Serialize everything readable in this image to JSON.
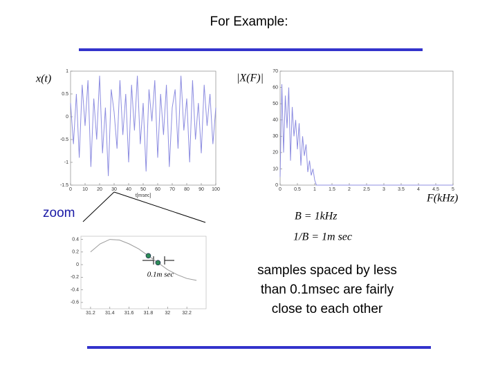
{
  "title": "For Example:",
  "zoom_label": "zoom",
  "bandwidth": "B = 1kHz",
  "inverse_bandwidth": "1/B = 1m sec",
  "note": [
    "samples spaced by less",
    "than 0.1msec are fairly",
    "close to each other"
  ],
  "chart_data": [
    {
      "type": "line",
      "y_label": "x(t)",
      "x_label": "t[msec]",
      "x": [
        0,
        2,
        4,
        6,
        8,
        10,
        12,
        14,
        16,
        18,
        20,
        22,
        24,
        26,
        28,
        30,
        32,
        34,
        36,
        38,
        40,
        42,
        44,
        46,
        48,
        50,
        52,
        54,
        56,
        58,
        60,
        62,
        64,
        66,
        68,
        70,
        72,
        74,
        76,
        78,
        80,
        82,
        84,
        86,
        88,
        90,
        92,
        94,
        96,
        98,
        100
      ],
      "series": [
        {
          "color": "#8c8ce0",
          "values": [
            0.3,
            -0.6,
            0.5,
            -0.9,
            0.7,
            -0.2,
            0.8,
            -1.1,
            0.4,
            -0.5,
            0.9,
            -0.8,
            0.2,
            -1.3,
            0.6,
            0.1,
            -0.7,
            0.8,
            -0.4,
            0.5,
            -1.0,
            0.7,
            -0.3,
            0.9,
            -0.6,
            0.3,
            -1.2,
            0.6,
            -0.1,
            0.8,
            -0.9,
            0.5,
            -0.4,
            0.7,
            -1.1,
            0.2,
            0.6,
            -0.7,
            0.9,
            -0.3,
            0.4,
            -1.0,
            0.8,
            -0.5,
            0.3,
            -0.8,
            0.7,
            -0.2,
            0.5,
            -0.6,
            0.2
          ]
        }
      ],
      "xlim": [
        0,
        100
      ],
      "xticks": [
        0,
        10,
        20,
        30,
        40,
        50,
        60,
        70,
        80,
        90,
        100
      ],
      "ylim": [
        -1.5,
        1
      ],
      "yticks": [
        -1.5,
        -1,
        -0.5,
        0,
        0.5,
        1
      ]
    },
    {
      "type": "line",
      "y_label": "|X(F)|",
      "x_label": "F(kHz)",
      "x": [
        0,
        0.05,
        0.1,
        0.15,
        0.2,
        0.25,
        0.3,
        0.35,
        0.4,
        0.45,
        0.5,
        0.55,
        0.6,
        0.65,
        0.7,
        0.75,
        0.8,
        0.85,
        0.9,
        0.95,
        1,
        1.05,
        1.1,
        1.15,
        1.2,
        5
      ],
      "series": [
        {
          "color": "#8c8ce0",
          "values": [
            5,
            62,
            20,
            55,
            35,
            60,
            15,
            48,
            30,
            40,
            22,
            38,
            12,
            30,
            18,
            25,
            8,
            15,
            6,
            10,
            3,
            0,
            0,
            0,
            0,
            0
          ]
        }
      ],
      "xlim": [
        0,
        5
      ],
      "xticks": [
        0,
        0.5,
        1,
        1.5,
        2,
        2.5,
        3,
        3.5,
        4,
        4.5,
        5
      ],
      "ylim": [
        0,
        70
      ],
      "yticks": [
        0,
        10,
        20,
        30,
        40,
        50,
        60,
        70
      ]
    },
    {
      "type": "line",
      "annotation": "0.1m sec",
      "series": [
        {
          "color": "#999999",
          "style": "line",
          "x": [
            31.2,
            31.3,
            31.4,
            31.5,
            31.6,
            31.7,
            31.8,
            31.9,
            32,
            32.1,
            32.2,
            32.3
          ],
          "values": [
            0.2,
            0.33,
            0.4,
            0.39,
            0.33,
            0.25,
            0.14,
            0.03,
            -0.08,
            -0.16,
            -0.22,
            -0.25
          ]
        },
        {
          "color": "#2e8b57",
          "style": "markers",
          "x": [
            31.8,
            31.9
          ],
          "values": [
            0.14,
            0.03
          ]
        }
      ],
      "xlim": [
        31.1,
        32.4
      ],
      "xticks": [
        31.2,
        31.4,
        31.6,
        31.8,
        32,
        32.2
      ],
      "ylim": [
        -0.7,
        0.45
      ],
      "yticks": [
        -0.6,
        -0.4,
        -0.2,
        0,
        0.2,
        0.4
      ]
    }
  ]
}
